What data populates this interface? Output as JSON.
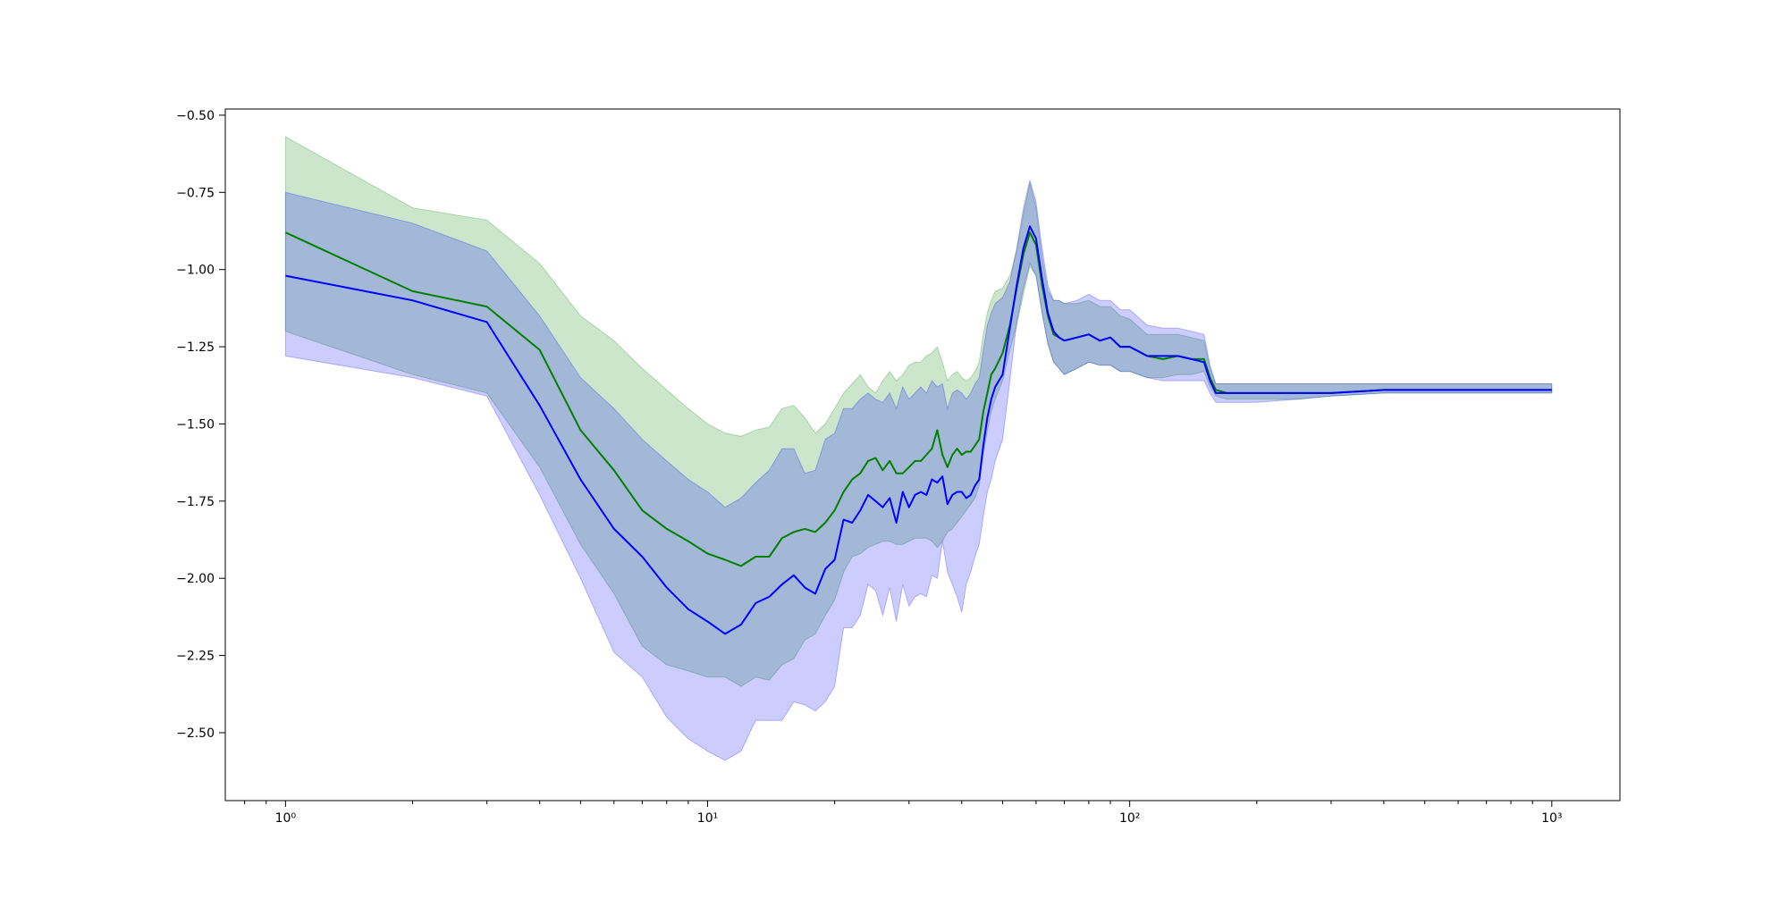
{
  "chart_data": {
    "type": "line",
    "title": "",
    "xlabel": "",
    "ylabel": "",
    "xscale": "log",
    "xlim": [
      0.72,
      1450
    ],
    "ylim": [
      -2.72,
      -0.48
    ],
    "grid": false,
    "legend": "none",
    "x_ticks": [
      {
        "value": 1,
        "label": "10⁰"
      },
      {
        "value": 10,
        "label": "10¹"
      },
      {
        "value": 100,
        "label": "10²"
      },
      {
        "value": 1000,
        "label": "10³"
      }
    ],
    "y_ticks": [
      {
        "value": -0.5,
        "label": "−0.50"
      },
      {
        "value": -0.75,
        "label": "−0.75"
      },
      {
        "value": -1.0,
        "label": "−1.00"
      },
      {
        "value": -1.25,
        "label": "−1.25"
      },
      {
        "value": -1.5,
        "label": "−1.50"
      },
      {
        "value": -1.75,
        "label": "−1.75"
      },
      {
        "value": -2.0,
        "label": "−2.00"
      },
      {
        "value": -2.25,
        "label": "−2.25"
      },
      {
        "value": -2.5,
        "label": "−2.50"
      }
    ],
    "series": [
      {
        "color": "#008000",
        "band_color": "#008000",
        "band_opacity": 0.2,
        "x": [
          1,
          2,
          3,
          4,
          5,
          6,
          7,
          8,
          9,
          10,
          11,
          12,
          13,
          14,
          15,
          16,
          17,
          18,
          19,
          20,
          21,
          22,
          23,
          24,
          25,
          26,
          27,
          28,
          29,
          30,
          31,
          32,
          33,
          34,
          35,
          36,
          37,
          38,
          39,
          40,
          41,
          42,
          43,
          44,
          45,
          46,
          47,
          48,
          50,
          52,
          54,
          56,
          58,
          60,
          62,
          64,
          66,
          68,
          70,
          75,
          80,
          85,
          90,
          95,
          100,
          110,
          120,
          130,
          140,
          150,
          155,
          160,
          170,
          200,
          250,
          300,
          400,
          500,
          600,
          700,
          800,
          900,
          1000
        ],
        "y": [
          -0.88,
          -1.07,
          -1.12,
          -1.26,
          -1.52,
          -1.65,
          -1.78,
          -1.84,
          -1.88,
          -1.92,
          -1.94,
          -1.96,
          -1.93,
          -1.93,
          -1.87,
          -1.85,
          -1.84,
          -1.85,
          -1.82,
          -1.78,
          -1.72,
          -1.68,
          -1.66,
          -1.62,
          -1.61,
          -1.65,
          -1.62,
          -1.66,
          -1.66,
          -1.64,
          -1.62,
          -1.62,
          -1.6,
          -1.58,
          -1.52,
          -1.6,
          -1.64,
          -1.6,
          -1.58,
          -1.6,
          -1.59,
          -1.59,
          -1.57,
          -1.55,
          -1.46,
          -1.4,
          -1.34,
          -1.32,
          -1.27,
          -1.18,
          -1.06,
          -0.95,
          -0.88,
          -0.92,
          -1.05,
          -1.15,
          -1.21,
          -1.22,
          -1.23,
          -1.22,
          -1.21,
          -1.23,
          -1.22,
          -1.25,
          -1.25,
          -1.28,
          -1.29,
          -1.28,
          -1.29,
          -1.29,
          -1.35,
          -1.39,
          -1.4,
          -1.4,
          -1.4,
          -1.4,
          -1.39,
          -1.39,
          -1.39,
          -1.39,
          -1.39,
          -1.39,
          -1.39
        ],
        "lower": [
          -1.2,
          -1.34,
          -1.4,
          -1.64,
          -1.89,
          -2.05,
          -2.22,
          -2.28,
          -2.3,
          -2.32,
          -2.32,
          -2.35,
          -2.32,
          -2.33,
          -2.28,
          -2.26,
          -2.2,
          -2.18,
          -2.12,
          -2.07,
          -1.98,
          -1.93,
          -1.92,
          -1.9,
          -1.89,
          -1.88,
          -1.88,
          -1.89,
          -1.89,
          -1.88,
          -1.87,
          -1.87,
          -1.87,
          -1.88,
          -1.9,
          -1.88,
          -1.85,
          -1.84,
          -1.82,
          -1.8,
          -1.78,
          -1.76,
          -1.74,
          -1.7,
          -1.6,
          -1.52,
          -1.46,
          -1.42,
          -1.36,
          -1.26,
          -1.18,
          -1.08,
          -0.99,
          -1.02,
          -1.14,
          -1.24,
          -1.3,
          -1.32,
          -1.34,
          -1.32,
          -1.3,
          -1.31,
          -1.31,
          -1.33,
          -1.33,
          -1.35,
          -1.35,
          -1.34,
          -1.34,
          -1.33,
          -1.38,
          -1.41,
          -1.42,
          -1.42,
          -1.42,
          -1.41,
          -1.4,
          -1.4,
          -1.4,
          -1.4,
          -1.4,
          -1.4,
          -1.4
        ],
        "upper": [
          -0.57,
          -0.8,
          -0.84,
          -0.98,
          -1.15,
          -1.23,
          -1.32,
          -1.39,
          -1.45,
          -1.5,
          -1.53,
          -1.54,
          -1.52,
          -1.51,
          -1.45,
          -1.44,
          -1.48,
          -1.53,
          -1.5,
          -1.45,
          -1.4,
          -1.37,
          -1.34,
          -1.38,
          -1.4,
          -1.36,
          -1.33,
          -1.36,
          -1.34,
          -1.31,
          -1.3,
          -1.3,
          -1.28,
          -1.27,
          -1.25,
          -1.3,
          -1.36,
          -1.34,
          -1.33,
          -1.35,
          -1.36,
          -1.35,
          -1.33,
          -1.3,
          -1.21,
          -1.14,
          -1.1,
          -1.07,
          -1.06,
          -1.02,
          -0.94,
          -0.82,
          -0.72,
          -0.8,
          -0.96,
          -1.07,
          -1.1,
          -1.1,
          -1.11,
          -1.11,
          -1.1,
          -1.12,
          -1.12,
          -1.15,
          -1.16,
          -1.21,
          -1.21,
          -1.21,
          -1.22,
          -1.23,
          -1.32,
          -1.37,
          -1.37,
          -1.37,
          -1.37,
          -1.37,
          -1.37,
          -1.37,
          -1.37,
          -1.37,
          -1.37,
          -1.37,
          -1.37
        ]
      },
      {
        "color": "#0000ff",
        "band_color": "#0000ff",
        "band_opacity": 0.2,
        "x": [
          1,
          2,
          3,
          4,
          5,
          6,
          7,
          8,
          9,
          10,
          11,
          12,
          13,
          14,
          15,
          16,
          17,
          18,
          19,
          20,
          21,
          22,
          23,
          24,
          25,
          26,
          27,
          28,
          29,
          30,
          31,
          32,
          33,
          34,
          35,
          36,
          37,
          38,
          39,
          40,
          41,
          42,
          43,
          44,
          45,
          46,
          47,
          48,
          50,
          52,
          54,
          56,
          58,
          60,
          62,
          64,
          66,
          68,
          70,
          75,
          80,
          85,
          90,
          95,
          100,
          110,
          120,
          130,
          140,
          150,
          155,
          160,
          170,
          200,
          250,
          300,
          400,
          500,
          600,
          700,
          800,
          900,
          1000
        ],
        "y": [
          -1.02,
          -1.1,
          -1.17,
          -1.44,
          -1.68,
          -1.84,
          -1.93,
          -2.03,
          -2.1,
          -2.14,
          -2.18,
          -2.15,
          -2.08,
          -2.06,
          -2.02,
          -1.99,
          -2.03,
          -2.05,
          -1.97,
          -1.94,
          -1.81,
          -1.82,
          -1.78,
          -1.73,
          -1.75,
          -1.77,
          -1.74,
          -1.82,
          -1.72,
          -1.77,
          -1.73,
          -1.72,
          -1.73,
          -1.68,
          -1.69,
          -1.67,
          -1.76,
          -1.73,
          -1.72,
          -1.72,
          -1.74,
          -1.73,
          -1.7,
          -1.68,
          -1.57,
          -1.48,
          -1.42,
          -1.38,
          -1.34,
          -1.19,
          -1.05,
          -0.93,
          -0.86,
          -0.9,
          -1.03,
          -1.14,
          -1.2,
          -1.22,
          -1.23,
          -1.22,
          -1.21,
          -1.23,
          -1.22,
          -1.25,
          -1.25,
          -1.28,
          -1.28,
          -1.28,
          -1.29,
          -1.3,
          -1.36,
          -1.4,
          -1.4,
          -1.4,
          -1.4,
          -1.4,
          -1.39,
          -1.39,
          -1.39,
          -1.39,
          -1.39,
          -1.39,
          -1.39
        ],
        "lower": [
          -1.28,
          -1.35,
          -1.41,
          -1.73,
          -2.0,
          -2.24,
          -2.32,
          -2.45,
          -2.52,
          -2.56,
          -2.59,
          -2.56,
          -2.46,
          -2.46,
          -2.46,
          -2.4,
          -2.41,
          -2.43,
          -2.4,
          -2.35,
          -2.16,
          -2.16,
          -2.12,
          -2.02,
          -2.04,
          -2.12,
          -2.03,
          -2.14,
          -2.02,
          -2.09,
          -2.06,
          -2.05,
          -2.06,
          -1.99,
          -2.0,
          -1.88,
          -1.98,
          -2.02,
          -2.06,
          -2.11,
          -2.02,
          -1.98,
          -1.93,
          -1.89,
          -1.8,
          -1.72,
          -1.68,
          -1.62,
          -1.55,
          -1.36,
          -1.17,
          -1.06,
          -0.98,
          -1.02,
          -1.14,
          -1.24,
          -1.3,
          -1.32,
          -1.34,
          -1.32,
          -1.3,
          -1.31,
          -1.31,
          -1.33,
          -1.33,
          -1.35,
          -1.36,
          -1.36,
          -1.36,
          -1.36,
          -1.4,
          -1.43,
          -1.43,
          -1.43,
          -1.42,
          -1.41,
          -1.4,
          -1.4,
          -1.4,
          -1.4,
          -1.4,
          -1.4,
          -1.4
        ],
        "upper": [
          -0.75,
          -0.85,
          -0.94,
          -1.15,
          -1.35,
          -1.45,
          -1.55,
          -1.62,
          -1.68,
          -1.72,
          -1.77,
          -1.74,
          -1.69,
          -1.65,
          -1.58,
          -1.58,
          -1.66,
          -1.65,
          -1.55,
          -1.53,
          -1.45,
          -1.45,
          -1.42,
          -1.4,
          -1.42,
          -1.43,
          -1.4,
          -1.45,
          -1.38,
          -1.42,
          -1.4,
          -1.38,
          -1.4,
          -1.36,
          -1.38,
          -1.37,
          -1.45,
          -1.4,
          -1.39,
          -1.4,
          -1.42,
          -1.4,
          -1.37,
          -1.35,
          -1.26,
          -1.18,
          -1.14,
          -1.11,
          -1.09,
          -1.04,
          -0.93,
          -0.8,
          -0.71,
          -0.78,
          -0.93,
          -1.05,
          -1.1,
          -1.1,
          -1.11,
          -1.1,
          -1.08,
          -1.1,
          -1.1,
          -1.13,
          -1.13,
          -1.18,
          -1.19,
          -1.19,
          -1.2,
          -1.21,
          -1.31,
          -1.37,
          -1.37,
          -1.37,
          -1.37,
          -1.37,
          -1.37,
          -1.37,
          -1.37,
          -1.37,
          -1.37,
          -1.37,
          -1.37
        ]
      }
    ]
  }
}
